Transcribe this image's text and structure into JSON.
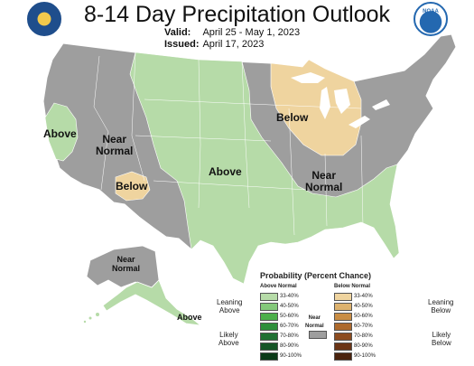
{
  "title": "8-14 Day Precipitation Outlook",
  "valid_label": "Valid:",
  "valid_value": "April 25 - May 1, 2023",
  "issued_label": "Issued:",
  "issued_value": "April 17, 2023",
  "logos": {
    "left": "department-of-commerce-seal",
    "right": "noaa-logo",
    "noaa_text": "NOAA"
  },
  "map": {
    "colors": {
      "near_normal": "#9e9e9e",
      "above_33_40": "#b6dba8",
      "below_33_40": "#efd49f",
      "ocean": "#ffffff",
      "border": "#ffffff"
    },
    "region_labels": {
      "above_west": "Above",
      "near_normal_west_1": "Near",
      "near_normal_west_2": "Normal",
      "below_sw": "Below",
      "above_central": "Above",
      "below_great_lakes": "Below",
      "near_normal_east_1": "Near",
      "near_normal_east_2": "Normal",
      "near_normal_alaska_1": "Near",
      "near_normal_alaska_2": "Normal",
      "above_alaska": "Above"
    }
  },
  "legend": {
    "title": "Probability (Percent Chance)",
    "above_header": "Above Normal",
    "below_header": "Below Normal",
    "near_normal_label_1": "Near",
    "near_normal_label_2": "Normal",
    "leaning_above_1": "Leaning",
    "leaning_above_2": "Above",
    "likely_above_1": "Likely",
    "likely_above_2": "Above",
    "leaning_below_1": "Leaning",
    "leaning_below_2": "Below",
    "likely_below_1": "Likely",
    "likely_below_2": "Below",
    "above_bins": [
      {
        "label": "33-40%",
        "color": "#b6dba8"
      },
      {
        "label": "40-50%",
        "color": "#84c87a"
      },
      {
        "label": "50-60%",
        "color": "#4caf4a"
      },
      {
        "label": "60-70%",
        "color": "#2e8f3b"
      },
      {
        "label": "70-80%",
        "color": "#1f7032"
      },
      {
        "label": "80-90%",
        "color": "#155526"
      },
      {
        "label": "90-100%",
        "color": "#0b3a18"
      }
    ],
    "below_bins": [
      {
        "label": "33-40%",
        "color": "#efd49f"
      },
      {
        "label": "40-50%",
        "color": "#ddb26e"
      },
      {
        "label": "50-60%",
        "color": "#c98d44"
      },
      {
        "label": "60-70%",
        "color": "#ad6a2d"
      },
      {
        "label": "70-80%",
        "color": "#8c4c20"
      },
      {
        "label": "80-90%",
        "color": "#6b3516"
      },
      {
        "label": "90-100%",
        "color": "#4a230e"
      }
    ],
    "near_normal_color": "#9e9e9e"
  }
}
